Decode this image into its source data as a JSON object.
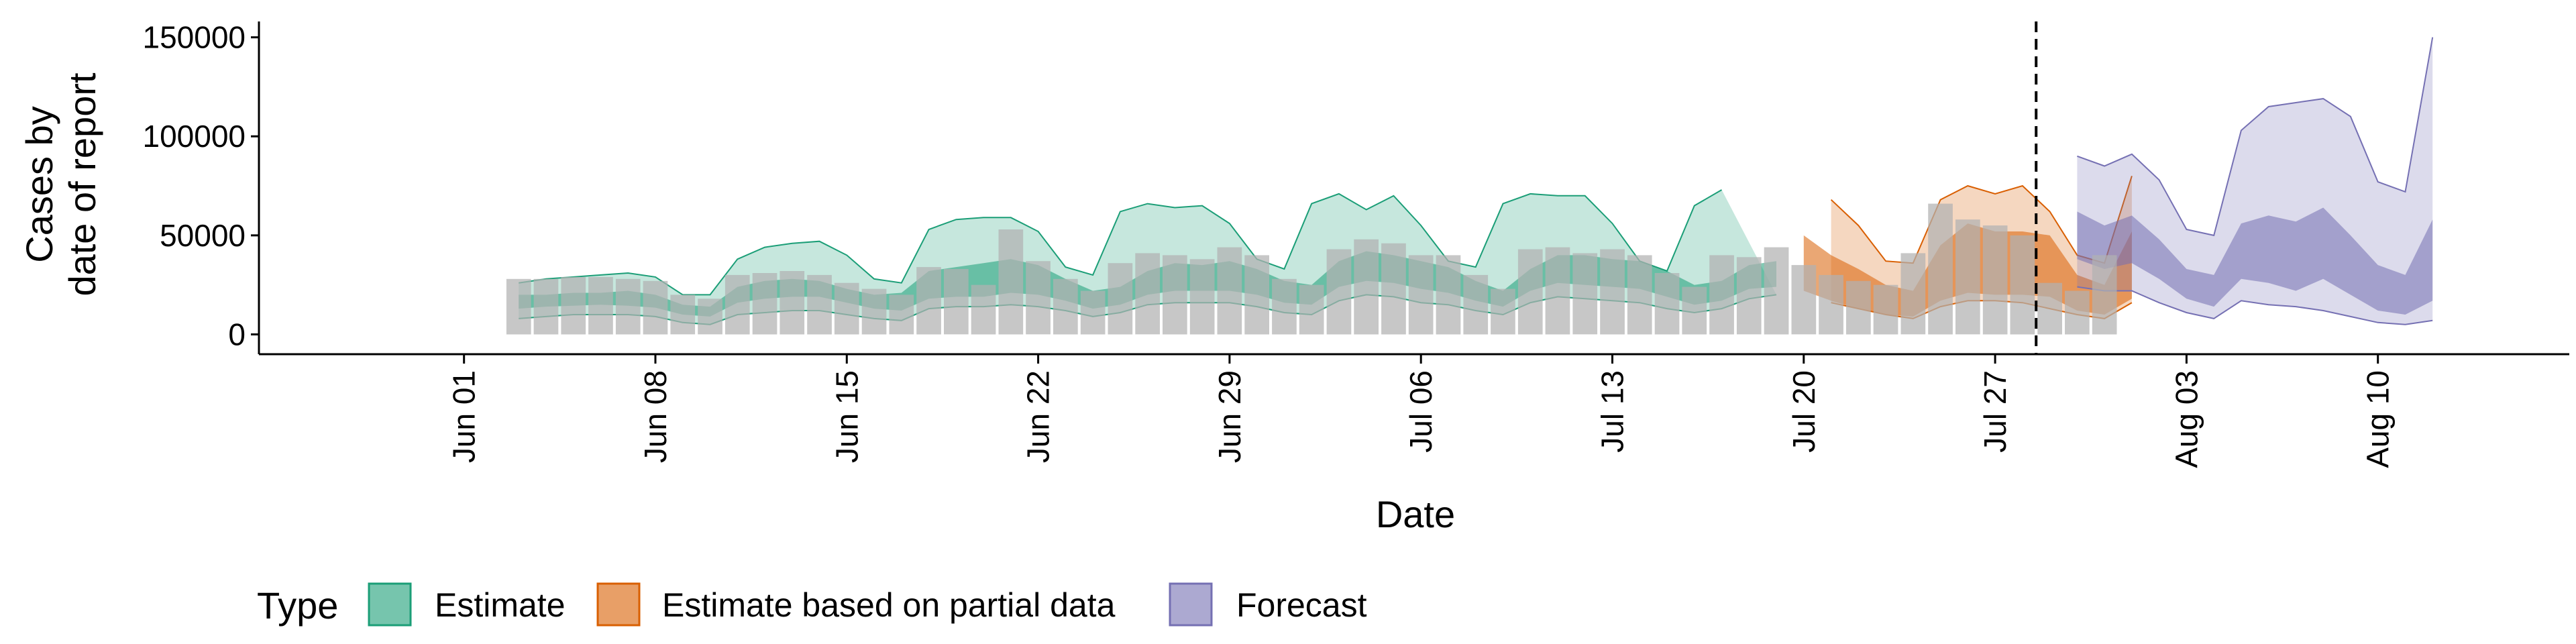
{
  "chart_data": {
    "type": "area",
    "title": "",
    "xlabel": "Date",
    "ylabel_lines": [
      "Cases by",
      "date of report"
    ],
    "ylim": [
      -10000,
      158000
    ],
    "y_ticks": [
      {
        "value": 0,
        "label": "0"
      },
      {
        "value": 50000,
        "label": "50000"
      },
      {
        "value": 100000,
        "label": "100000"
      },
      {
        "value": 150000,
        "label": "150000"
      }
    ],
    "x_range_days": [
      -7.5,
      77
    ],
    "x_ticks": [
      {
        "day": 0,
        "label": "Jun 01"
      },
      {
        "day": 7,
        "label": "Jun 08"
      },
      {
        "day": 14,
        "label": "Jun 15"
      },
      {
        "day": 21,
        "label": "Jun 22"
      },
      {
        "day": 28,
        "label": "Jun 29"
      },
      {
        "day": 35,
        "label": "Jul 06"
      },
      {
        "day": 42,
        "label": "Jul 13"
      },
      {
        "day": 49,
        "label": "Jul 20"
      },
      {
        "day": 56,
        "label": "Jul 27"
      },
      {
        "day": 63,
        "label": "Aug 03"
      },
      {
        "day": 70,
        "label": "Aug 10"
      }
    ],
    "forecast_line_day": 57.5,
    "bars": {
      "start_day": 2,
      "values": [
        28000,
        28000,
        29000,
        29000,
        28000,
        27000,
        20000,
        18000,
        30000,
        31000,
        32000,
        30000,
        26000,
        23000,
        20000,
        34000,
        33000,
        25000,
        53000,
        37000,
        28000,
        22000,
        36000,
        41000,
        40000,
        38000,
        44000,
        40000,
        28000,
        25000,
        43000,
        48000,
        46000,
        40000,
        40000,
        30000,
        23000,
        43000,
        44000,
        41000,
        43000,
        40000,
        31000,
        24000,
        40000,
        39000,
        44000,
        35000,
        30000,
        27000,
        25000,
        41000,
        66000,
        58000,
        55000,
        50000,
        26000,
        22000,
        40000
      ],
      "color": "#b2b2b2"
    },
    "series": [
      {
        "name": "Estimate",
        "color": "#1b9e77",
        "x_start": 2,
        "inner_upper": [
          20000,
          20000,
          21000,
          21000,
          22000,
          20000,
          15000,
          14000,
          24000,
          27000,
          28000,
          27000,
          23000,
          20000,
          21000,
          32000,
          34000,
          36000,
          38000,
          35000,
          28000,
          22000,
          24000,
          32000,
          36000,
          35000,
          37000,
          33000,
          27000,
          25000,
          37000,
          42000,
          40000,
          37000,
          34000,
          27000,
          22000,
          33000,
          40000,
          40000,
          38000,
          37000,
          32000,
          25000,
          27000,
          35000,
          37000
        ],
        "inner_lower": [
          13000,
          14000,
          14500,
          15000,
          14500,
          13500,
          10000,
          9000,
          16000,
          18000,
          19000,
          19000,
          16000,
          13000,
          12000,
          18000,
          19000,
          19000,
          21000,
          20000,
          17000,
          13000,
          15000,
          20000,
          22000,
          22000,
          22000,
          20000,
          16000,
          15000,
          24000,
          27000,
          26000,
          23000,
          21000,
          17000,
          14000,
          22000,
          26000,
          25000,
          24000,
          23000,
          19000,
          15000,
          17000,
          23000,
          24000
        ],
        "outer_upper": [
          26000,
          28000,
          29000,
          30000,
          31000,
          29000,
          20000,
          20000,
          38000,
          44000,
          46000,
          47000,
          40000,
          28000,
          26000,
          53000,
          58000,
          59000,
          59000,
          52000,
          34000,
          30000,
          62000,
          66000,
          64000,
          65000,
          56000,
          38000,
          33000,
          66000,
          71000,
          63000,
          70000,
          55000,
          37000,
          34000,
          66000,
          71000,
          70000,
          70000,
          56000,
          37000,
          32000,
          65000,
          73000
        ],
        "outer_lower": [
          8000,
          9000,
          10000,
          10000,
          10000,
          9000,
          6000,
          5000,
          10000,
          11000,
          12000,
          12000,
          10000,
          8000,
          7000,
          13000,
          14000,
          14000,
          15000,
          14000,
          12000,
          9000,
          11000,
          15000,
          16000,
          16000,
          16000,
          14000,
          11000,
          10000,
          17000,
          20000,
          19000,
          16000,
          15000,
          12000,
          10000,
          16000,
          19000,
          18000,
          17000,
          16000,
          13000,
          11000,
          13000,
          18000,
          20000
        ]
      },
      {
        "name": "Estimate based on partial data",
        "color": "#d95f02",
        "x_start": 49,
        "inner_upper": [
          50000,
          40000,
          33000,
          25000,
          22000,
          45000,
          56000,
          52000,
          52000,
          50000,
          30000,
          25000,
          52000
        ],
        "inner_lower": [
          22000,
          17000,
          13000,
          10000,
          9000,
          17000,
          21000,
          20000,
          20000,
          19000,
          12000,
          10000,
          18000
        ],
        "outer_upper": [
          68000,
          55000,
          37000,
          36000,
          68000,
          75000,
          71000,
          75000,
          62000,
          40000,
          36000,
          80000
        ],
        "outer_lower": [
          16000,
          13000,
          10000,
          8000,
          14000,
          17000,
          17000,
          16000,
          13000,
          10000,
          8000,
          16000
        ],
        "outer_x_start": 50
      },
      {
        "name": "Forecast",
        "color": "#7570b3",
        "x_start": 59,
        "inner_upper": [
          62000,
          55000,
          60000,
          48000,
          33000,
          30000,
          56000,
          60000,
          57000,
          64000,
          50000,
          35000,
          30000,
          58000
        ],
        "inner_lower": [
          38000,
          33000,
          36000,
          28000,
          18000,
          14000,
          28000,
          26000,
          22000,
          28000,
          20000,
          12000,
          10000,
          17000
        ],
        "outer_upper": [
          90000,
          85000,
          91000,
          78000,
          53000,
          50000,
          103000,
          115000,
          117000,
          119000,
          110000,
          77000,
          72000,
          150000
        ],
        "outer_lower": [
          24000,
          22000,
          22000,
          16000,
          11000,
          8000,
          17000,
          15000,
          14000,
          12000,
          9000,
          6000,
          5000,
          7000
        ]
      }
    ],
    "legend": {
      "position": "bottom",
      "title": "Type",
      "entries": [
        {
          "label": "Estimate",
          "color": "#1b9e77"
        },
        {
          "label": "Estimate based on partial data",
          "color": "#d95f02"
        },
        {
          "label": "Forecast",
          "color": "#7570b3"
        }
      ]
    }
  }
}
